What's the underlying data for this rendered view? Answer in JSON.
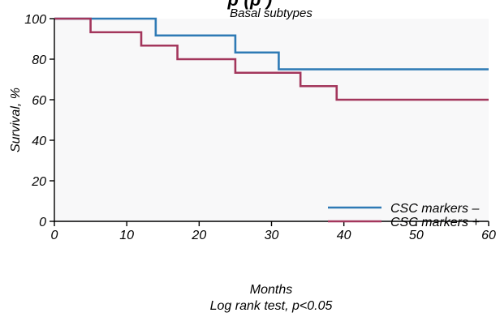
{
  "chart_data": {
    "type": "line",
    "step": true,
    "top_title_partial": "p                                        (p   )",
    "subtitle": "Basal subtypes",
    "xlabel": "Months",
    "ylabel": "Survival, %",
    "footnote": "Log rank test, p<0.05",
    "xlim": [
      0,
      60
    ],
    "ylim": [
      0,
      100
    ],
    "x_ticks": [
      0,
      10,
      20,
      30,
      40,
      50,
      60
    ],
    "y_ticks": [
      0,
      20,
      40,
      60,
      80,
      100
    ],
    "grid": false,
    "legend_position": "bottom-right",
    "series": [
      {
        "name": "CSC markers –",
        "color": "#2e7ab5",
        "points": [
          [
            0,
            100
          ],
          [
            14,
            100
          ],
          [
            14,
            91.7
          ],
          [
            25,
            91.7
          ],
          [
            25,
            83.3
          ],
          [
            31,
            83.3
          ],
          [
            31,
            75
          ],
          [
            60,
            75
          ]
        ]
      },
      {
        "name": "CSC markers +",
        "color": "#a3365c",
        "points": [
          [
            0,
            100
          ],
          [
            5,
            100
          ],
          [
            5,
            93.3
          ],
          [
            12,
            93.3
          ],
          [
            12,
            86.7
          ],
          [
            17,
            86.7
          ],
          [
            17,
            80
          ],
          [
            25,
            80
          ],
          [
            25,
            73.3
          ],
          [
            34,
            73.3
          ],
          [
            34,
            66.7
          ],
          [
            39,
            66.7
          ],
          [
            39,
            60
          ],
          [
            60,
            60
          ]
        ]
      }
    ]
  }
}
